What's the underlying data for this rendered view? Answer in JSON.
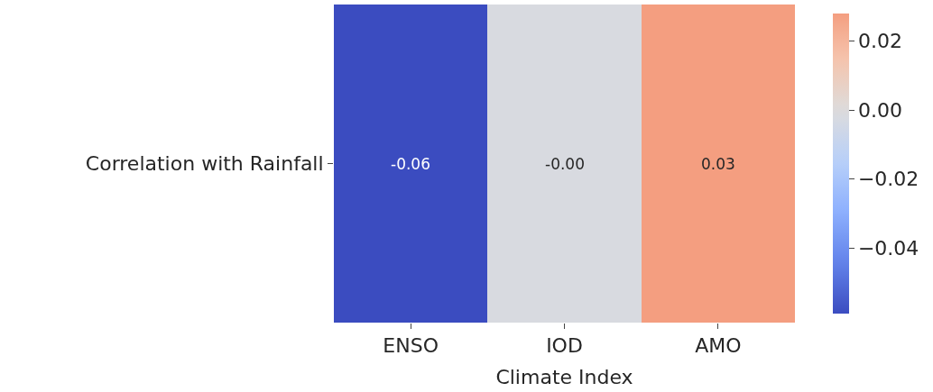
{
  "chart_data": {
    "type": "heatmap",
    "xlabel": "Climate Index",
    "categories": [
      "ENSO",
      "IOD",
      "AMO"
    ],
    "y_categories": [
      "Correlation with Rainfall"
    ],
    "cells": [
      [
        -0.059,
        -0.002,
        0.028
      ]
    ],
    "cell_labels": [
      [
        "-0.06",
        "-0.00",
        "0.03"
      ]
    ],
    "clim": [
      -0.059,
      0.028
    ],
    "cticks": [
      {
        "value": -0.04,
        "label": "−0.04"
      },
      {
        "value": -0.02,
        "label": "−0.02"
      },
      {
        "value": 0,
        "label": "0.00"
      },
      {
        "value": 0.02,
        "label": "0.02"
      }
    ]
  }
}
